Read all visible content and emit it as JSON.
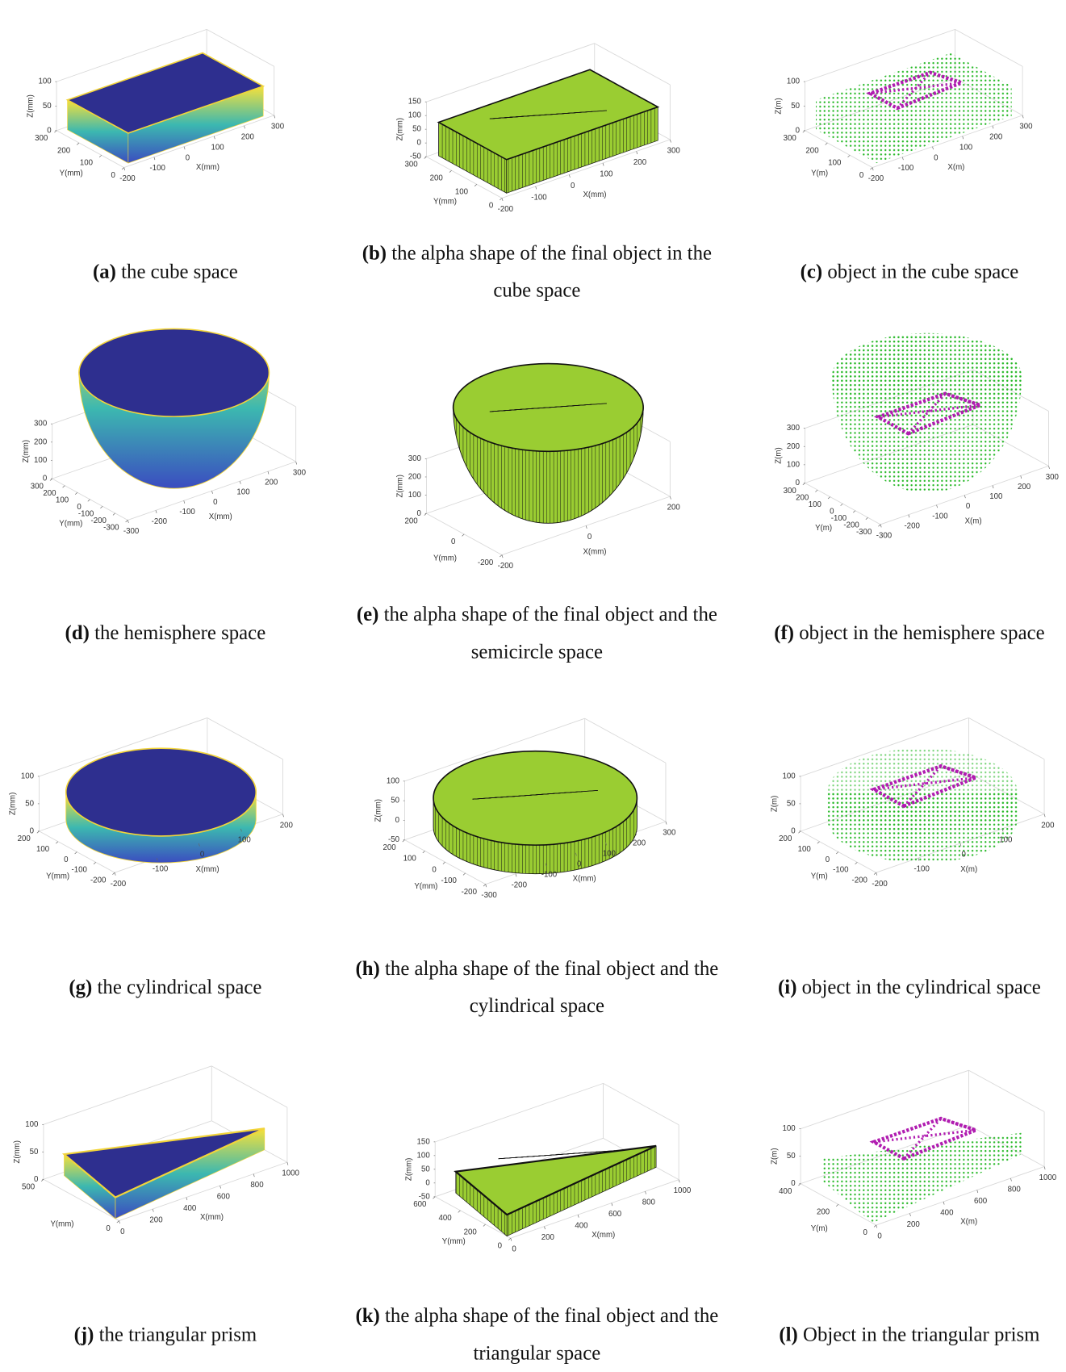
{
  "panels": [
    {
      "label": "(a)",
      "caption": "the cube space",
      "x_label": "X(mm)",
      "y_label": "Y(mm)",
      "z_label": "Z(mm)",
      "x_ticks": [
        -200,
        -100,
        0,
        100,
        200,
        300
      ],
      "y_ticks": [
        300,
        200,
        100,
        0
      ],
      "z_ticks": [
        0,
        50,
        100
      ]
    },
    {
      "label": "(b)",
      "caption": "the alpha shape of the final object in the cube space",
      "x_label": "X(mm)",
      "y_label": "Y(mm)",
      "z_label": "Z(mm)",
      "x_ticks": [
        -200,
        -100,
        0,
        100,
        200,
        300
      ],
      "y_ticks": [
        300,
        200,
        100,
        0
      ],
      "z_ticks": [
        -50,
        0,
        50,
        100,
        150
      ]
    },
    {
      "label": "(c)",
      "caption": "object in the cube space",
      "x_label": "X(m)",
      "y_label": "Y(m)",
      "z_label": "Z(m)",
      "x_ticks": [
        -200,
        -100,
        0,
        100,
        200,
        300
      ],
      "y_ticks": [
        300,
        200,
        100,
        0
      ],
      "z_ticks": [
        0,
        50,
        100
      ]
    },
    {
      "label": "(d)",
      "caption": "the hemisphere space",
      "x_label": "X(mm)",
      "y_label": "Y(mm)",
      "z_label": "Z(mm)",
      "x_ticks": [
        -300,
        -200,
        -100,
        0,
        100,
        200,
        300
      ],
      "y_ticks": [
        300,
        200,
        100,
        0,
        -100,
        -200,
        -300
      ],
      "z_ticks": [
        0,
        100,
        200,
        300
      ]
    },
    {
      "label": "(e)",
      "caption": "the alpha shape of the final object and the semicircle space",
      "x_label": "X(mm)",
      "y_label": "Y(mm)",
      "z_label": "Z(mm)",
      "x_ticks": [
        -200,
        0,
        200
      ],
      "y_ticks": [
        200,
        0,
        -200
      ],
      "z_ticks": [
        0,
        100,
        200,
        300
      ]
    },
    {
      "label": "(f)",
      "caption": "object in the hemisphere space",
      "x_label": "X(m)",
      "y_label": "Y(m)",
      "z_label": "Z(m)",
      "x_ticks": [
        -300,
        -200,
        -100,
        0,
        100,
        200,
        300
      ],
      "y_ticks": [
        300,
        200,
        100,
        0,
        -100,
        -200,
        -300
      ],
      "z_ticks": [
        0,
        100,
        200,
        300
      ]
    },
    {
      "label": "(g)",
      "caption": "the cylindrical space",
      "x_label": "X(mm)",
      "y_label": "Y(mm)",
      "z_label": "Z(mm)",
      "x_ticks": [
        -200,
        -100,
        0,
        100,
        200
      ],
      "y_ticks": [
        200,
        100,
        0,
        -100,
        -200
      ],
      "z_ticks": [
        0,
        50,
        100
      ]
    },
    {
      "label": "(h)",
      "caption": "the alpha shape of the final object and the cylindrical space",
      "x_label": "X(mm)",
      "y_label": "Y(mm)",
      "z_label": "Z(mm)",
      "x_ticks": [
        -300,
        -200,
        -100,
        0,
        100,
        200,
        300
      ],
      "y_ticks": [
        200,
        100,
        0,
        -100,
        -200
      ],
      "z_ticks": [
        -50,
        0,
        50,
        100
      ]
    },
    {
      "label": "(i)",
      "caption": "object in the cylindrical space",
      "x_label": "X(m)",
      "y_label": "Y(m)",
      "z_label": "Z(m)",
      "x_ticks": [
        -200,
        -100,
        0,
        100,
        200
      ],
      "y_ticks": [
        200,
        100,
        0,
        -100,
        -200
      ],
      "z_ticks": [
        0,
        50,
        100
      ]
    },
    {
      "label": "(j)",
      "caption": "the triangular prism",
      "x_label": "X(mm)",
      "y_label": "Y(mm)",
      "z_label": "Z(mm)",
      "x_ticks": [
        0,
        200,
        400,
        600,
        800,
        1000
      ],
      "y_ticks": [
        500,
        0
      ],
      "z_ticks": [
        0,
        50,
        100
      ]
    },
    {
      "label": "(k)",
      "caption": "the alpha shape of the final object and the triangular space",
      "x_label": "X(mm)",
      "y_label": "Y(mm)",
      "z_label": "Z(mm)",
      "x_ticks": [
        0,
        200,
        400,
        600,
        800,
        1000
      ],
      "y_ticks": [
        600,
        400,
        200,
        0
      ],
      "z_ticks": [
        -50,
        0,
        50,
        100,
        150
      ]
    },
    {
      "label": "(l)",
      "caption": "Object in the triangular prism",
      "x_label": "X(m)",
      "y_label": "Y(m)",
      "z_label": "Z(m)",
      "x_ticks": [
        0,
        200,
        400,
        600,
        800,
        1000
      ],
      "y_ticks": [
        400,
        200,
        0
      ],
      "z_ticks": [
        0,
        50,
        100
      ]
    }
  ]
}
